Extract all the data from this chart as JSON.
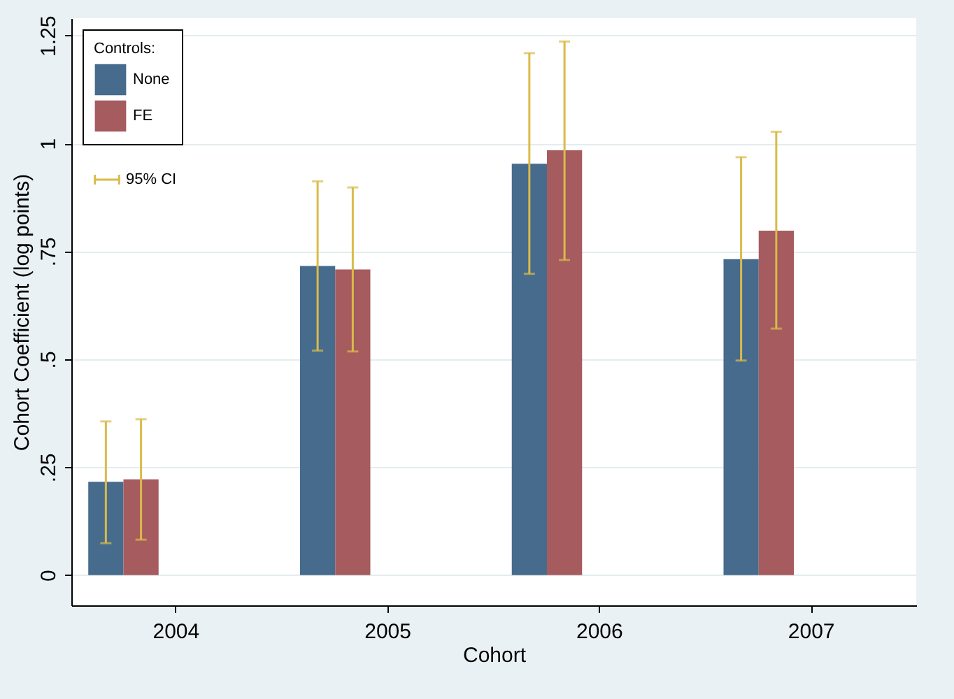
{
  "chart_data": {
    "type": "bar",
    "xlabel": "Cohort",
    "ylabel": "Cohort Coefficient (log points)",
    "legend_title": "Controls:",
    "legend": "top left",
    "grid": "y",
    "categories": [
      "2004",
      "2005",
      "2006",
      "2007"
    ],
    "series": [
      {
        "name": "None",
        "color": "#466b8c",
        "values": [
          0.216,
          0.716,
          0.953,
          0.732
        ],
        "errors": [
          [
            0.074,
            0.356
          ],
          [
            0.52,
            0.912
          ],
          [
            0.698,
            1.209
          ],
          [
            0.497,
            0.968
          ]
        ]
      },
      {
        "name": "FE",
        "color": "#a65b5e",
        "values": [
          0.222,
          0.708,
          0.984,
          0.798
        ],
        "errors": [
          [
            0.082,
            0.361
          ],
          [
            0.518,
            0.898
          ],
          [
            0.73,
            1.236
          ],
          [
            0.571,
            1.027
          ]
        ]
      }
    ],
    "annotations": [
      {
        "text": "95% CI"
      }
    ],
    "ylim": [
      -0.07,
      1.29
    ],
    "yticks": [
      0,
      {
        "value": 0.25,
        "label": ".25"
      },
      {
        "value": 0.5,
        "label": ".5"
      },
      {
        "value": 0.75,
        "label": ".75"
      },
      1,
      1.25
    ]
  }
}
